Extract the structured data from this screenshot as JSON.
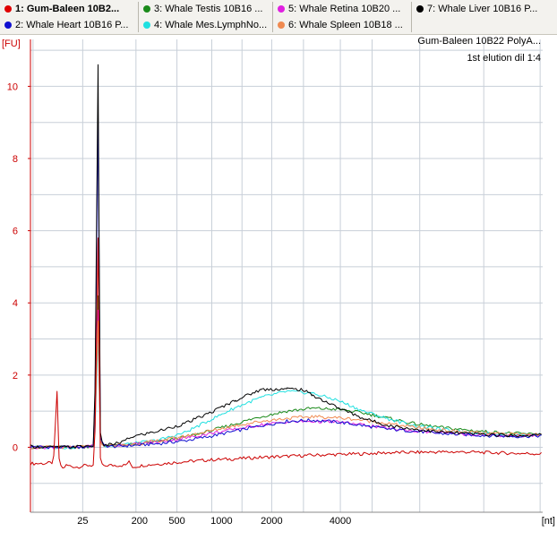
{
  "legend": {
    "items": [
      {
        "label": "1: Gum-Baleen 10B2...",
        "color": "#e00000",
        "selected": true
      },
      {
        "label": "2: Whale Heart 10B16 P...",
        "color": "#1010d0",
        "selected": false
      },
      {
        "label": "3: Whale Testis 10B16 ...",
        "color": "#1a8a1a",
        "selected": false
      },
      {
        "label": "4: Whale Mes.LymphNo...",
        "color": "#20e0e0",
        "selected": false
      },
      {
        "label": "5: Whale Retina 10B20 ...",
        "color": "#e020e0",
        "selected": false
      },
      {
        "label": "6: Whale Spleen 10B18 ...",
        "color": "#f08a50",
        "selected": false
      },
      {
        "label": "7: Whale Liver 10B16 P...",
        "color": "#000000",
        "selected": false
      }
    ]
  },
  "sample": {
    "name": "Gum-Baleen 10B22 PolyA...",
    "note": "1st elution dil 1:4"
  },
  "chart_data": {
    "type": "line",
    "title": "",
    "xlabel": "[nt]",
    "ylabel": "[FU]",
    "ylim": [
      -1.8,
      11.3
    ],
    "yticks": [
      0,
      2,
      4,
      6,
      8,
      10
    ],
    "xticks_nt": [
      "25",
      "200",
      "500",
      "1000",
      "2000",
      "4000"
    ],
    "xlim_s": [
      0,
      100
    ],
    "grid": true,
    "series": [
      {
        "name": "1: Gum-Baleen 10B2...",
        "color": "#cc0000",
        "x": [
          0,
          3,
          4.5,
          5.2,
          5.6,
          6.2,
          7,
          9,
          11,
          12.5,
          13.2,
          13.6,
          14.2,
          15,
          17,
          18.5,
          19.2,
          20,
          22,
          26,
          30,
          35,
          40,
          45,
          50,
          55,
          60,
          65,
          70,
          75,
          80,
          85,
          90,
          95,
          100
        ],
        "y": [
          -0.45,
          -0.45,
          -0.42,
          1.55,
          -0.35,
          -0.6,
          -0.5,
          -0.55,
          -0.5,
          -0.5,
          5.8,
          -0.3,
          -0.55,
          -0.5,
          -0.5,
          -0.5,
          -0.4,
          -0.55,
          -0.5,
          -0.45,
          -0.4,
          -0.35,
          -0.32,
          -0.28,
          -0.25,
          -0.22,
          -0.2,
          -0.18,
          -0.15,
          -0.14,
          -0.13,
          -0.13,
          -0.15,
          -0.17,
          -0.18
        ]
      },
      {
        "name": "2: Whale Heart 10B16 P...",
        "color": "#1010d0",
        "x": [
          0,
          5,
          10,
          12.5,
          13.2,
          13.6,
          14.2,
          16,
          20,
          25,
          30,
          35,
          40,
          45,
          50,
          55,
          60,
          65,
          70,
          75,
          80,
          85,
          90,
          95,
          100
        ],
        "y": [
          0.02,
          0.0,
          0.0,
          0.05,
          9.2,
          0.3,
          0.05,
          0.02,
          0.05,
          0.1,
          0.18,
          0.3,
          0.45,
          0.6,
          0.72,
          0.75,
          0.7,
          0.6,
          0.5,
          0.45,
          0.38,
          0.35,
          0.32,
          0.3,
          0.32
        ]
      },
      {
        "name": "3: Whale Testis 10B16 ...",
        "color": "#1a8a1a",
        "x": [
          0,
          5,
          10,
          12.5,
          13.2,
          13.6,
          14.2,
          16,
          20,
          25,
          30,
          35,
          40,
          45,
          50,
          55,
          60,
          65,
          70,
          75,
          80,
          85,
          90,
          95,
          100
        ],
        "y": [
          0.0,
          0.0,
          0.0,
          0.05,
          4.2,
          0.2,
          0.05,
          0.05,
          0.08,
          0.15,
          0.28,
          0.45,
          0.65,
          0.85,
          1.0,
          1.08,
          1.05,
          0.95,
          0.8,
          0.65,
          0.55,
          0.48,
          0.42,
          0.38,
          0.35
        ]
      },
      {
        "name": "4: Whale Mes.LymphNo...",
        "color": "#20e0e0",
        "x": [
          0,
          5,
          10,
          12.5,
          13.2,
          13.6,
          14.2,
          16,
          20,
          25,
          30,
          35,
          40,
          45,
          50,
          55,
          60,
          65,
          70,
          75,
          80,
          85,
          90,
          95,
          100
        ],
        "y": [
          0.0,
          0.0,
          0.0,
          0.05,
          3.1,
          0.2,
          0.05,
          0.05,
          0.1,
          0.2,
          0.4,
          0.75,
          1.1,
          1.38,
          1.55,
          1.5,
          1.3,
          1.0,
          0.78,
          0.6,
          0.5,
          0.42,
          0.38,
          0.35,
          0.35
        ]
      },
      {
        "name": "5: Whale Retina 10B20 ...",
        "color": "#e020e0",
        "x": [
          0,
          5,
          10,
          12.5,
          13.2,
          13.6,
          14.2,
          16,
          20,
          25,
          30,
          35,
          40,
          45,
          50,
          55,
          60,
          65,
          70,
          75,
          80,
          85,
          90,
          95,
          100
        ],
        "y": [
          0.0,
          0.0,
          0.0,
          0.05,
          3.8,
          0.2,
          0.05,
          0.05,
          0.08,
          0.15,
          0.25,
          0.38,
          0.5,
          0.62,
          0.7,
          0.72,
          0.7,
          0.62,
          0.52,
          0.45,
          0.4,
          0.36,
          0.33,
          0.32,
          0.33
        ]
      },
      {
        "name": "6: Whale Spleen 10B18 ...",
        "color": "#f08a50",
        "x": [
          0,
          5,
          10,
          12.5,
          13.2,
          13.6,
          14.2,
          16,
          20,
          25,
          30,
          35,
          40,
          45,
          50,
          55,
          60,
          65,
          70,
          75,
          80,
          85,
          90,
          95,
          100
        ],
        "y": [
          0.0,
          0.0,
          0.0,
          0.05,
          3.5,
          0.2,
          0.05,
          0.05,
          0.08,
          0.18,
          0.3,
          0.45,
          0.6,
          0.72,
          0.8,
          0.85,
          0.82,
          0.75,
          0.65,
          0.55,
          0.48,
          0.42,
          0.38,
          0.36,
          0.35
        ]
      },
      {
        "name": "7: Whale Liver 10B16 P...",
        "color": "#000000",
        "x": [
          0,
          5,
          10,
          12.5,
          13.2,
          13.6,
          14.2,
          16,
          18,
          20,
          25,
          30,
          35,
          40,
          45,
          50,
          53,
          55,
          60,
          65,
          70,
          75,
          80,
          85,
          90,
          95,
          100
        ],
        "y": [
          0.02,
          0.0,
          0.02,
          0.05,
          10.6,
          0.4,
          0.05,
          0.08,
          0.15,
          0.3,
          0.45,
          0.65,
          0.95,
          1.3,
          1.6,
          1.62,
          1.6,
          1.45,
          1.1,
          0.8,
          0.6,
          0.5,
          0.42,
          0.38,
          0.35,
          0.32,
          0.35
        ]
      }
    ]
  }
}
